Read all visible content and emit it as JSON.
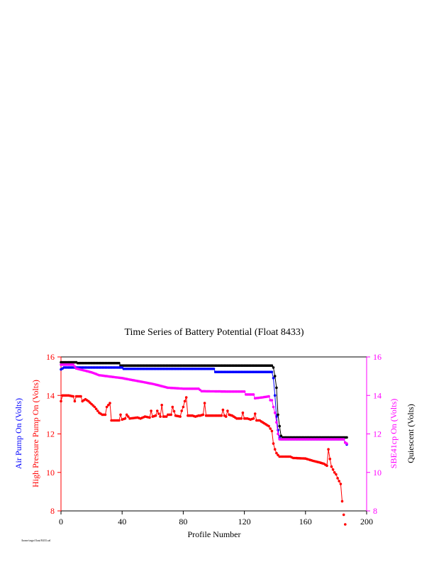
{
  "chart_data": {
    "type": "line",
    "title": "Time Series of Battery Potential (Float 8433)",
    "xlabel": "Profile Number",
    "left_labels": [
      "Air Pump On (Volts)",
      "High Pressure Pump On (Volts)"
    ],
    "right_labels": [
      "SBE41cp On (Volts)",
      "Quiescent (Volts)"
    ],
    "xlim": [
      0,
      200
    ],
    "ylim": [
      8,
      16
    ],
    "x_ticks": [
      0,
      40,
      80,
      120,
      160,
      200
    ],
    "y_ticks": [
      8,
      10,
      12,
      14,
      16
    ],
    "grid": false,
    "footer_note": "/home/argo/float/8433.cal",
    "colors": {
      "air_pump": "#0000ff",
      "high_pressure_pump": "#ff0000",
      "sbe41cp": "#ff00ff",
      "quiescent": "#000000",
      "left_axis": "#ff0000",
      "right_axis": "#ff00ff"
    },
    "series": [
      {
        "key": "quiescent",
        "points": [
          [
            0,
            15.72
          ],
          [
            10,
            15.72
          ],
          [
            11,
            15.68
          ],
          [
            38,
            15.68
          ],
          [
            39,
            15.55
          ],
          [
            138,
            15.55
          ],
          [
            139,
            15.45
          ],
          [
            140,
            15.0
          ],
          [
            141,
            14.4
          ],
          [
            142,
            13.0
          ],
          [
            143,
            12.4
          ],
          [
            144,
            11.9
          ],
          [
            145,
            11.82
          ],
          [
            187,
            11.82
          ]
        ]
      },
      {
        "key": "air_pump",
        "points": [
          [
            0,
            15.35
          ],
          [
            2,
            15.45
          ],
          [
            40,
            15.45
          ],
          [
            41,
            15.38
          ],
          [
            100,
            15.38
          ],
          [
            101,
            15.22
          ],
          [
            138,
            15.22
          ],
          [
            139,
            14.9
          ],
          [
            140,
            14.0
          ],
          [
            141,
            12.9
          ],
          [
            142,
            12.2
          ],
          [
            143,
            11.8
          ],
          [
            144,
            11.72
          ],
          [
            185,
            11.72
          ],
          [
            186,
            11.55
          ],
          [
            187,
            11.45
          ]
        ]
      },
      {
        "key": "sbe41cp",
        "points": [
          [
            0,
            15.6
          ],
          [
            8,
            15.6
          ],
          [
            10,
            15.4
          ],
          [
            15,
            15.3
          ],
          [
            20,
            15.2
          ],
          [
            25,
            15.05
          ],
          [
            30,
            15.0
          ],
          [
            40,
            14.9
          ],
          [
            50,
            14.75
          ],
          [
            60,
            14.6
          ],
          [
            65,
            14.5
          ],
          [
            70,
            14.4
          ],
          [
            80,
            14.35
          ],
          [
            90,
            14.35
          ],
          [
            92,
            14.22
          ],
          [
            110,
            14.2
          ],
          [
            120,
            14.2
          ],
          [
            121,
            14.05
          ],
          [
            126,
            14.05
          ],
          [
            127,
            13.85
          ],
          [
            132,
            13.9
          ],
          [
            136,
            13.95
          ],
          [
            137,
            13.75
          ],
          [
            138,
            13.75
          ],
          [
            139,
            13.4
          ],
          [
            140,
            13.1
          ],
          [
            141,
            12.6
          ],
          [
            142,
            12.0
          ],
          [
            143,
            11.72
          ],
          [
            185,
            11.72
          ],
          [
            186,
            11.55
          ],
          [
            187,
            11.5
          ]
        ]
      },
      {
        "key": "high_pressure_pump",
        "points": [
          [
            0,
            13.7
          ],
          [
            1,
            14.0
          ],
          [
            5,
            14.0
          ],
          [
            8,
            13.95
          ],
          [
            9,
            13.7
          ],
          [
            10,
            13.95
          ],
          [
            13,
            13.95
          ],
          [
            14,
            13.7
          ],
          [
            16,
            13.8
          ],
          [
            18,
            13.7
          ],
          [
            20,
            13.55
          ],
          [
            22,
            13.4
          ],
          [
            25,
            13.1
          ],
          [
            27,
            13.0
          ],
          [
            29,
            13.0
          ],
          [
            30,
            13.4
          ],
          [
            32,
            13.6
          ],
          [
            33,
            12.7
          ],
          [
            35,
            12.7
          ],
          [
            38,
            12.7
          ],
          [
            39,
            13.0
          ],
          [
            40,
            12.75
          ],
          [
            42,
            12.8
          ],
          [
            43,
            13.0
          ],
          [
            45,
            12.8
          ],
          [
            50,
            12.85
          ],
          [
            52,
            12.8
          ],
          [
            55,
            12.9
          ],
          [
            58,
            12.85
          ],
          [
            59,
            13.2
          ],
          [
            60,
            12.9
          ],
          [
            62,
            12.95
          ],
          [
            63,
            13.2
          ],
          [
            65,
            12.9
          ],
          [
            66,
            13.5
          ],
          [
            67,
            12.9
          ],
          [
            69,
            12.9
          ],
          [
            70,
            13.0
          ],
          [
            72,
            13.0
          ],
          [
            73,
            13.4
          ],
          [
            75,
            12.95
          ],
          [
            78,
            12.9
          ],
          [
            79,
            13.2
          ],
          [
            80,
            13.4
          ],
          [
            81,
            13.7
          ],
          [
            82,
            13.9
          ],
          [
            83,
            12.95
          ],
          [
            86,
            12.95
          ],
          [
            88,
            12.9
          ],
          [
            90,
            12.95
          ],
          [
            91,
            12.95
          ],
          [
            93,
            13.0
          ],
          [
            94,
            13.6
          ],
          [
            95,
            12.95
          ],
          [
            100,
            12.95
          ],
          [
            105,
            12.95
          ],
          [
            106,
            13.25
          ],
          [
            107,
            12.95
          ],
          [
            108,
            12.9
          ],
          [
            109,
            13.2
          ],
          [
            110,
            13.0
          ],
          [
            112,
            12.95
          ],
          [
            115,
            12.8
          ],
          [
            118,
            12.8
          ],
          [
            119,
            13.1
          ],
          [
            120,
            12.8
          ],
          [
            122,
            12.8
          ],
          [
            124,
            12.75
          ],
          [
            126,
            12.8
          ],
          [
            127,
            13.05
          ],
          [
            128,
            12.7
          ],
          [
            130,
            12.7
          ],
          [
            132,
            12.6
          ],
          [
            134,
            12.5
          ],
          [
            136,
            12.4
          ],
          [
            138,
            12.15
          ],
          [
            139,
            11.5
          ],
          [
            140,
            11.2
          ],
          [
            141,
            11.0
          ],
          [
            142,
            10.9
          ],
          [
            143,
            10.82
          ],
          [
            150,
            10.82
          ],
          [
            152,
            10.75
          ],
          [
            160,
            10.72
          ],
          [
            165,
            10.6
          ],
          [
            170,
            10.5
          ],
          [
            172,
            10.45
          ],
          [
            174,
            10.35
          ],
          [
            175,
            11.2
          ],
          [
            176,
            10.7
          ],
          [
            177,
            10.3
          ],
          [
            178,
            10.15
          ],
          [
            179,
            10.0
          ],
          [
            180,
            9.9
          ],
          [
            181,
            9.7
          ],
          [
            183,
            9.4
          ],
          [
            184,
            8.5
          ],
          [
            185,
            7.8
          ],
          [
            186,
            7.3
          ]
        ]
      }
    ]
  }
}
